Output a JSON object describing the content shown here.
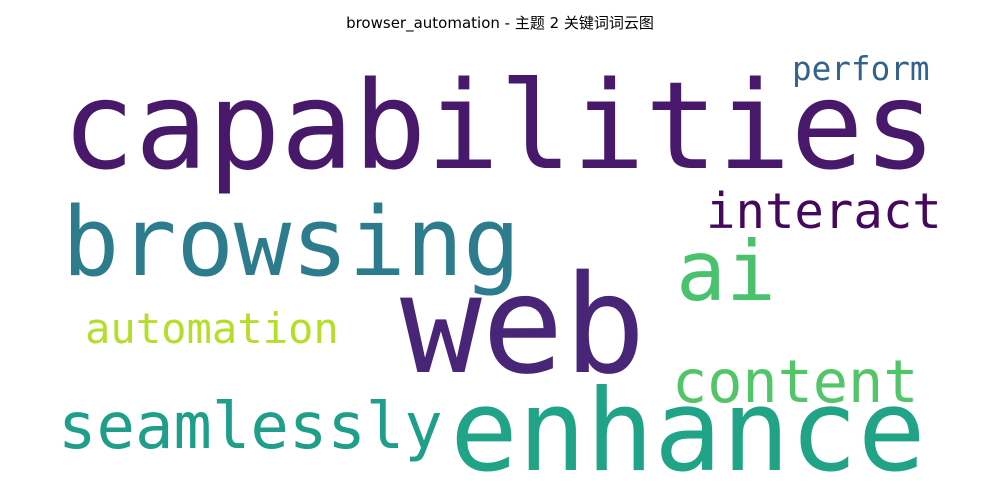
{
  "chart_data": {
    "type": "wordcloud",
    "title": "browser_automation - 主题 2 关键词词云图",
    "words": [
      "web",
      "capabilities",
      "enhance",
      "browsing",
      "ai",
      "seamlessly",
      "content",
      "interact",
      "automation",
      "perform"
    ],
    "weights": [
      1.0,
      0.89,
      0.83,
      0.7,
      0.61,
      0.47,
      0.43,
      0.36,
      0.31,
      0.24
    ],
    "colors": [
      "#482576",
      "#48186a",
      "#20a386",
      "#2c7c8e",
      "#4ac16d",
      "#1f9e89",
      "#52c569",
      "#46085c",
      "#b5de2b",
      "#33638d"
    ]
  }
}
